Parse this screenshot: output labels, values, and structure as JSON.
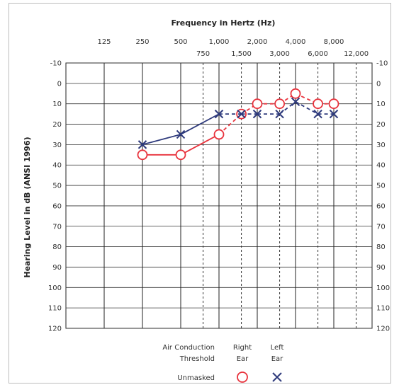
{
  "chart_data": {
    "type": "line",
    "title": "Frequency in Hertz (Hz)",
    "ylabel": "Hearing Level in dB (ANSI 1996)",
    "xlabel": "",
    "x_scale": "log",
    "y_inverted": true,
    "ylim": [
      -10,
      120
    ],
    "y_ticks": [
      -10,
      0,
      10,
      20,
      30,
      40,
      50,
      60,
      70,
      80,
      90,
      100,
      110,
      120
    ],
    "x_major_ticks": [
      {
        "value": 125,
        "label": "125"
      },
      {
        "value": 250,
        "label": "250"
      },
      {
        "value": 500,
        "label": "500"
      },
      {
        "value": 1000,
        "label": "1,000"
      },
      {
        "value": 2000,
        "label": "2,000"
      },
      {
        "value": 4000,
        "label": "4,000"
      },
      {
        "value": 8000,
        "label": "8,000"
      }
    ],
    "x_minor_ticks": [
      {
        "value": 750,
        "label": "750"
      },
      {
        "value": 1500,
        "label": "1,500"
      },
      {
        "value": 3000,
        "label": "3,000"
      },
      {
        "value": 6000,
        "label": "6,000"
      },
      {
        "value": 12000,
        "label": "12,000"
      }
    ],
    "grid": true,
    "series": [
      {
        "name": "Right Ear",
        "marker": "circle",
        "color": "#e8323c",
        "x": [
          250,
          500,
          1000,
          1500,
          2000,
          3000,
          4000,
          6000,
          8000
        ],
        "y": [
          35,
          35,
          25,
          15,
          10,
          10,
          5,
          10,
          10
        ]
      },
      {
        "name": "Left Ear",
        "marker": "x",
        "color": "#2e3a7c",
        "x": [
          250,
          500,
          1000,
          1500,
          2000,
          3000,
          4000,
          6000,
          8000
        ],
        "y": [
          30,
          25,
          15,
          15,
          15,
          15,
          9,
          15,
          15
        ]
      }
    ],
    "legend": {
      "placement": "bottom",
      "row_label_1": "Air Conduction",
      "row_label_2": "Threshold",
      "row_label_3": "Unmasked",
      "right_label_1": "Right",
      "right_label_2": "Ear",
      "left_label_1": "Left",
      "left_label_2": "Ear"
    }
  }
}
